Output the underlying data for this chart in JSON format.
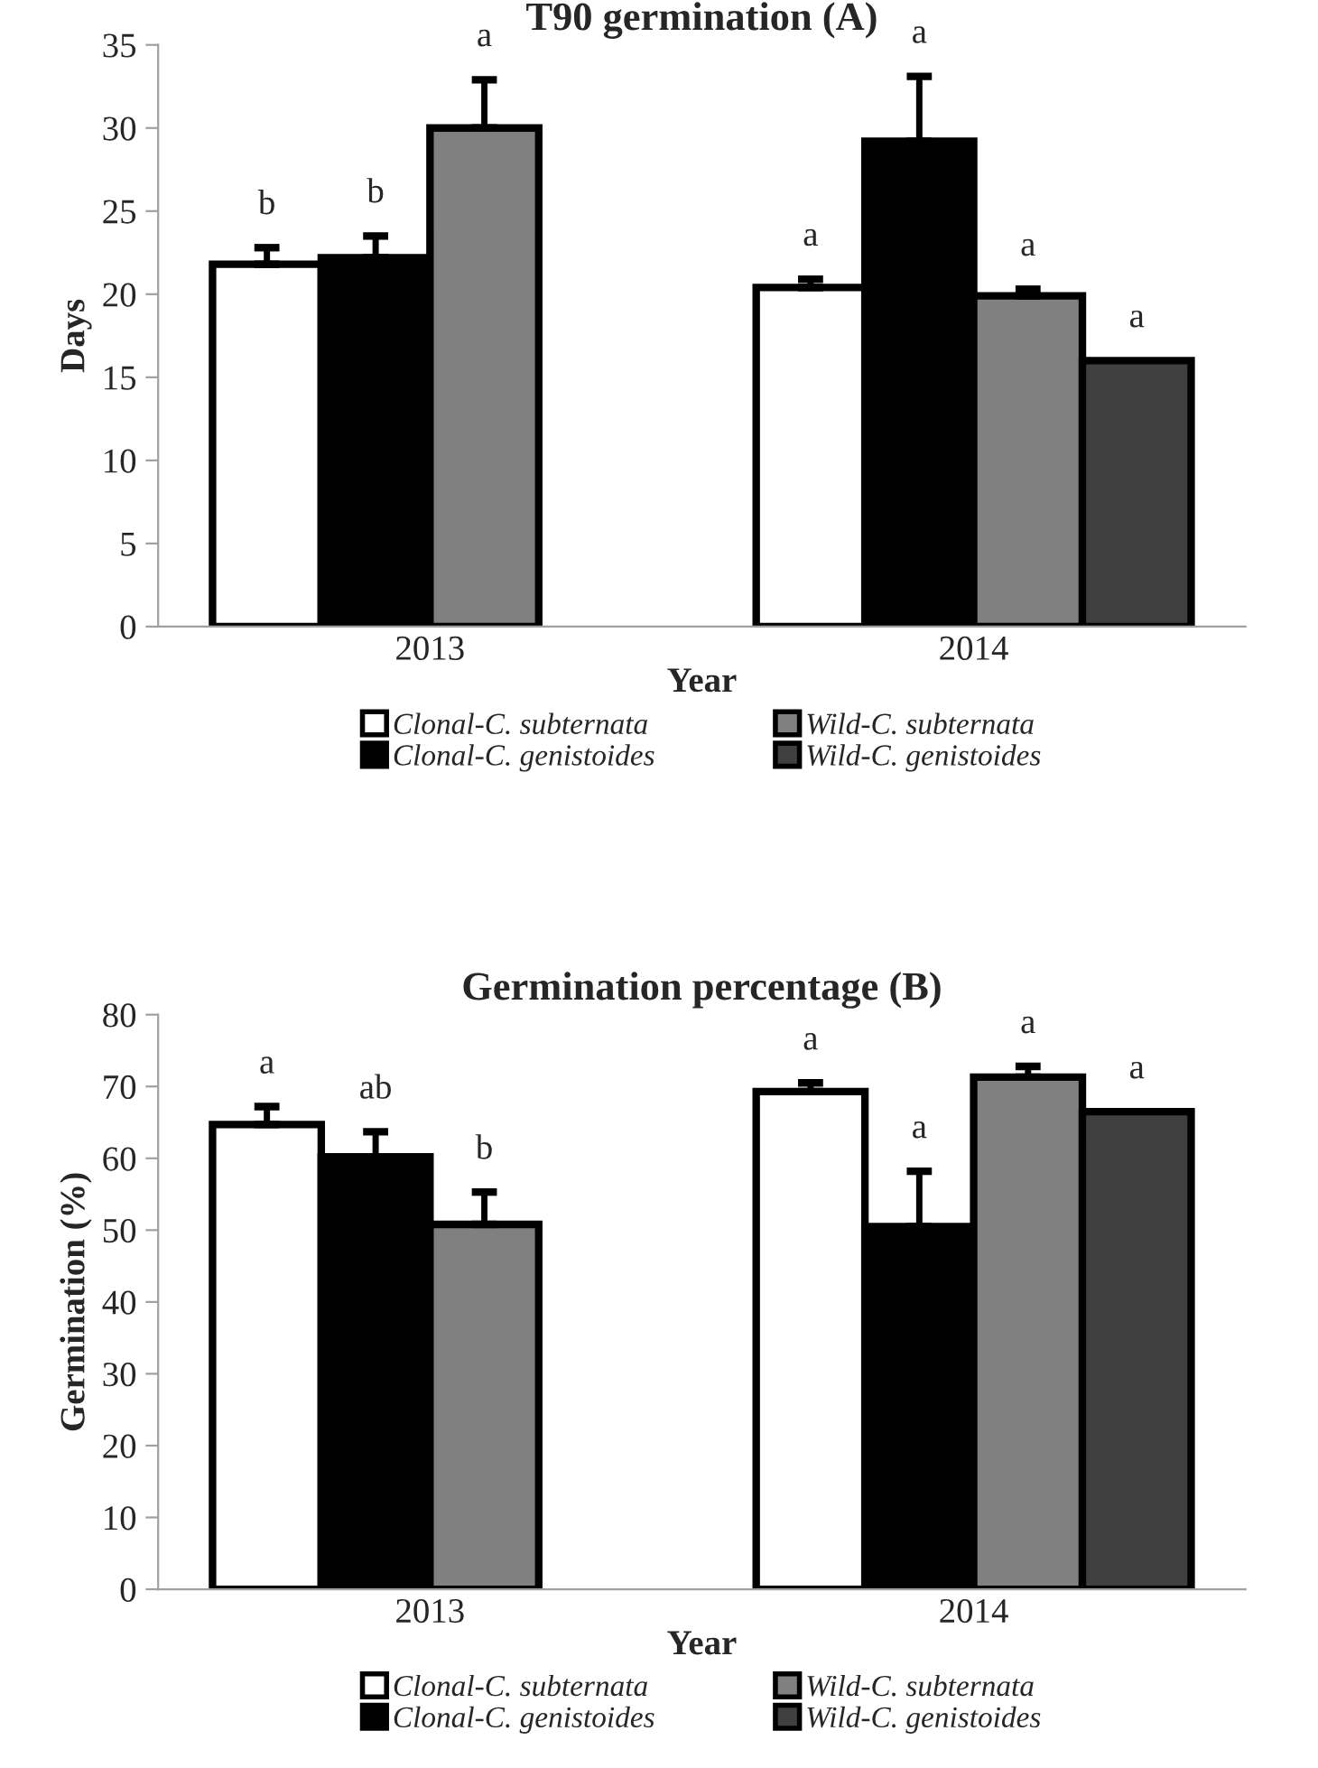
{
  "chart_data": [
    {
      "type": "bar",
      "title": "T90 germination (A)",
      "xlabel": "Year",
      "ylabel": "Days",
      "categories": [
        "2013",
        "2014"
      ],
      "ylim": [
        0,
        35
      ],
      "yticks": [
        0,
        5,
        10,
        15,
        20,
        25,
        30,
        35
      ],
      "grid": false,
      "legend": "bottom",
      "series": [
        {
          "name": "Clonal-C. subternata",
          "color": "#ffffff",
          "values": [
            21.8,
            20.4
          ],
          "errors": [
            [
              21.8,
              22.8
            ],
            [
              20.4,
              20.9
            ]
          ],
          "value_labels": [
            "b",
            "a"
          ]
        },
        {
          "name": "Clonal-C. genistoides",
          "color": "#000000",
          "values": [
            22.2,
            29.2
          ],
          "errors": [
            [
              22.2,
              23.5
            ],
            [
              29.2,
              33.1
            ]
          ],
          "value_labels": [
            "b",
            "a"
          ]
        },
        {
          "name": "Wild-C. subternata",
          "color": "#808080",
          "values": [
            30.0,
            19.9
          ],
          "errors": [
            [
              30.0,
              32.9
            ],
            [
              19.9,
              20.3
            ]
          ],
          "value_labels": [
            "a",
            "a"
          ]
        },
        {
          "name": "Wild-C. genistoides",
          "color": "#404040",
          "values": [
            null,
            16.0
          ],
          "errors": [
            null,
            null
          ],
          "value_labels": [
            null,
            "a"
          ]
        }
      ]
    },
    {
      "type": "bar",
      "title": "Germination percentage (B)",
      "xlabel": "Year",
      "ylabel": "Germination (%)",
      "categories": [
        "2013",
        "2014"
      ],
      "ylim": [
        0,
        80
      ],
      "yticks": [
        0,
        10,
        20,
        30,
        40,
        50,
        60,
        70,
        80
      ],
      "grid": false,
      "legend": "bottom",
      "series": [
        {
          "name": "Clonal-C. subternata",
          "color": "#ffffff",
          "values": [
            64.7,
            69.3
          ],
          "errors": [
            [
              64.7,
              67.2
            ],
            [
              69.3,
              70.5
            ]
          ],
          "value_labels": [
            "a",
            "a"
          ]
        },
        {
          "name": "Clonal-C. genistoides",
          "color": "#000000",
          "values": [
            60.2,
            50.5
          ],
          "errors": [
            [
              60.2,
              63.7
            ],
            [
              50.5,
              58.2
            ]
          ],
          "value_labels": [
            "ab",
            "a"
          ]
        },
        {
          "name": "Wild-C. subternata",
          "color": "#808080",
          "values": [
            50.8,
            71.3
          ],
          "errors": [
            [
              50.8,
              55.3
            ],
            [
              71.3,
              72.8
            ]
          ],
          "value_labels": [
            "b",
            "a"
          ]
        },
        {
          "name": "Wild-C. genistoides",
          "color": "#404040",
          "values": [
            null,
            66.5
          ],
          "errors": [
            null,
            null
          ],
          "value_labels": [
            null,
            "a"
          ]
        }
      ]
    }
  ]
}
